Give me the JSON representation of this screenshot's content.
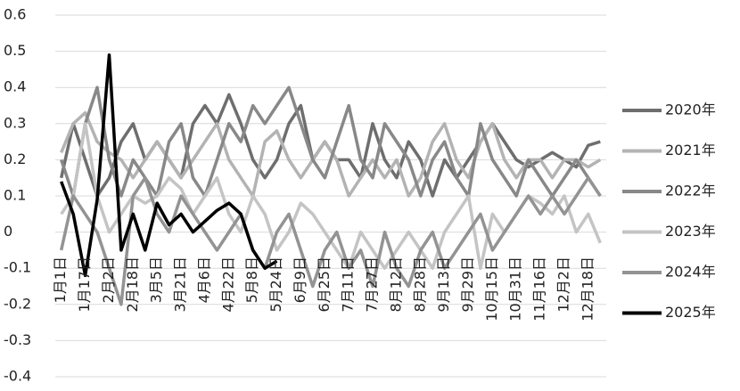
{
  "chart_data": {
    "type": "line",
    "categories": [
      "1月1日",
      null,
      "1月17日",
      null,
      "2月2日",
      null,
      "2月18日",
      null,
      "3月5日",
      null,
      "3月21日",
      null,
      "4月6日",
      null,
      "4月22日",
      null,
      "5月8日",
      null,
      "5月24日",
      null,
      "6月9日",
      null,
      "6月25日",
      null,
      "7月11日",
      null,
      "7月27日",
      null,
      "8月12日",
      null,
      "8月28日",
      null,
      "9月13日",
      null,
      "9月29日",
      null,
      "10月15日",
      null,
      "10月31日",
      null,
      "11月16日",
      null,
      "12月2日",
      null,
      "12月18日",
      null
    ],
    "series": [
      {
        "name": "2020年",
        "color": "#6e6e6e",
        "values": [
          0.15,
          0.3,
          0.2,
          0.1,
          0.15,
          0.25,
          0.3,
          0.2,
          0.25,
          0.2,
          0.15,
          0.3,
          0.35,
          0.3,
          0.38,
          0.3,
          0.2,
          0.15,
          0.2,
          0.3,
          0.35,
          0.2,
          0.25,
          0.2,
          0.2,
          0.15,
          0.3,
          0.2,
          0.15,
          0.25,
          0.2,
          0.1,
          0.2,
          0.15,
          0.2,
          0.25,
          0.3,
          0.25,
          0.2,
          0.18,
          0.2,
          0.22,
          0.2,
          0.18,
          0.24,
          0.25
        ]
      },
      {
        "name": "2021年",
        "color": "#b3b3b3",
        "values": [
          0.22,
          0.3,
          0.33,
          0.25,
          0.22,
          0.2,
          0.15,
          0.2,
          0.25,
          0.2,
          0.15,
          0.2,
          0.25,
          0.3,
          0.2,
          0.15,
          0.1,
          0.25,
          0.28,
          0.2,
          0.15,
          0.2,
          0.25,
          0.2,
          0.1,
          0.15,
          0.2,
          0.15,
          0.2,
          0.1,
          0.15,
          0.25,
          0.3,
          0.2,
          0.15,
          0.25,
          0.3,
          0.2,
          0.15,
          0.2,
          0.2,
          0.15,
          0.2,
          0.2,
          0.18,
          0.2
        ]
      },
      {
        "name": "2022年",
        "color": "#888888",
        "values": [
          0.2,
          0.1,
          0.3,
          0.4,
          0.2,
          0.1,
          0.2,
          0.15,
          0.1,
          0.25,
          0.3,
          0.15,
          0.1,
          0.2,
          0.3,
          0.25,
          0.35,
          0.3,
          0.35,
          0.4,
          0.3,
          0.2,
          0.15,
          0.25,
          0.35,
          0.2,
          0.15,
          0.3,
          0.25,
          0.2,
          0.1,
          0.2,
          0.25,
          0.15,
          0.1,
          0.3,
          0.2,
          0.15,
          0.1,
          0.2,
          0.15,
          0.1,
          0.15,
          0.2,
          0.15,
          0.1
        ]
      },
      {
        "name": "2023年",
        "color": "#c4c4c4",
        "values": [
          0.05,
          0.1,
          0.3,
          0.1,
          0.0,
          0.05,
          0.1,
          0.08,
          0.1,
          0.15,
          0.12,
          0.05,
          0.1,
          0.15,
          0.05,
          0.0,
          0.1,
          0.05,
          -0.05,
          0.0,
          0.08,
          0.05,
          0.0,
          -0.05,
          -0.1,
          0.0,
          -0.05,
          -0.1,
          -0.05,
          0.0,
          -0.05,
          -0.1,
          0.0,
          0.05,
          0.1,
          -0.1,
          0.05,
          0.0,
          0.05,
          0.1,
          0.08,
          0.05,
          0.1,
          0.0,
          0.05,
          -0.03
        ]
      },
      {
        "name": "2024年",
        "color": "#939393",
        "values": [
          -0.05,
          0.1,
          0.05,
          0.0,
          -0.1,
          -0.2,
          0.1,
          0.15,
          0.05,
          0.0,
          0.1,
          0.05,
          0.0,
          -0.05,
          0.0,
          0.05,
          -0.05,
          -0.1,
          0.0,
          0.05,
          -0.05,
          -0.15,
          -0.05,
          0.0,
          -0.1,
          -0.05,
          -0.15,
          0.0,
          -0.1,
          -0.15,
          -0.05,
          0.0,
          -0.1,
          -0.05,
          0.0,
          0.05,
          -0.05,
          0.0,
          0.05,
          0.1,
          0.05,
          0.1,
          0.05,
          0.1,
          0.15,
          0.1
        ]
      },
      {
        "name": "2025年",
        "color": "#000000",
        "values": [
          0.14,
          0.05,
          -0.12,
          0.09,
          0.49,
          -0.05,
          0.05,
          -0.05,
          0.08,
          0.02,
          0.05,
          0.0,
          0.03,
          0.06,
          0.08,
          0.05,
          -0.05,
          -0.1,
          -0.08,
          null,
          null,
          null,
          null,
          null,
          null,
          null,
          null,
          null,
          null,
          null,
          null,
          null,
          null,
          null,
          null,
          null,
          null,
          null,
          null,
          null,
          null,
          null,
          null,
          null,
          null,
          null
        ]
      }
    ],
    "ylim": [
      -0.4,
      0.6
    ],
    "yticks": [
      -0.4,
      -0.3,
      -0.2,
      -0.1,
      0,
      0.1,
      0.2,
      0.3,
      0.4,
      0.5,
      0.6
    ],
    "grid": true,
    "legend": "right"
  }
}
